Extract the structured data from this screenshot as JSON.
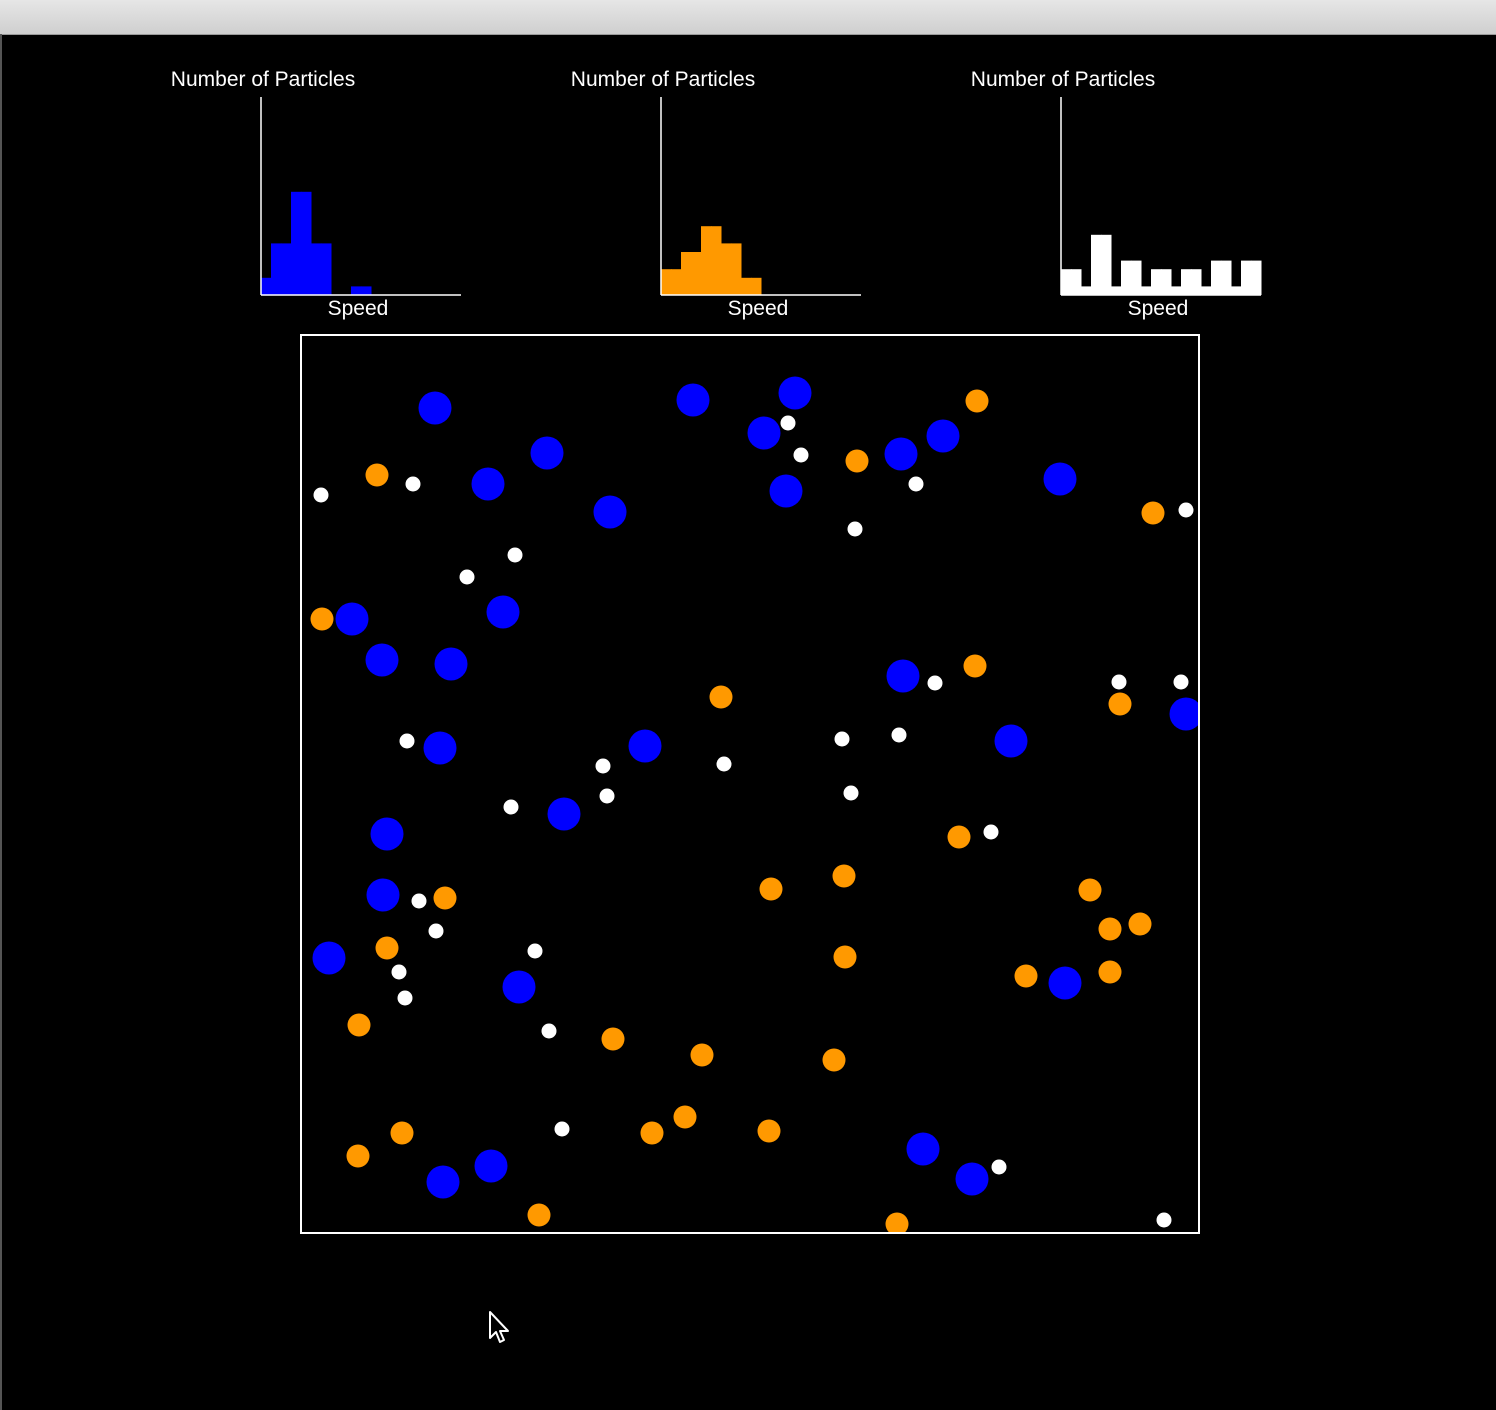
{
  "histograms": [
    {
      "ylabel": "Number of Particles",
      "xlabel": "Speed",
      "color": "#0000ff"
    },
    {
      "ylabel": "Number of Particles",
      "xlabel": "Speed",
      "color": "#ff9900"
    },
    {
      "ylabel": "Number of Particles",
      "xlabel": "Speed",
      "color": "#ffffff"
    }
  ],
  "chart_data": [
    {
      "type": "bar",
      "color": "#0000ff",
      "ylabel": "Number of Particles",
      "xlabel": "Speed",
      "values": [
        2,
        6,
        6,
        12,
        12,
        6,
        6,
        0,
        0,
        1,
        1,
        0,
        0,
        0,
        0,
        0,
        0,
        0,
        0,
        0
      ]
    },
    {
      "type": "bar",
      "color": "#ff9900",
      "ylabel": "Number of Particles",
      "xlabel": "Speed",
      "values": [
        3,
        3,
        5,
        5,
        8,
        8,
        6,
        6,
        2,
        2,
        0,
        0,
        0,
        0,
        0,
        0,
        0,
        0,
        0,
        0
      ]
    },
    {
      "type": "bar",
      "color": "#ffffff",
      "ylabel": "Number of Particles",
      "xlabel": "Speed",
      "values": [
        3,
        3,
        1,
        7,
        7,
        1,
        4,
        4,
        1,
        3,
        3,
        1,
        3,
        3,
        1,
        4,
        4,
        1,
        4,
        4
      ]
    }
  ],
  "simulation": {
    "colors": {
      "large": "#0000ff",
      "medium": "#ff9900",
      "small": "#ffffff",
      "border": "#ffffff",
      "background": "#000000"
    },
    "particles": {
      "large": [
        [
          133,
          72
        ],
        [
          391,
          64
        ],
        [
          493,
          57
        ],
        [
          462,
          97
        ],
        [
          245,
          117
        ],
        [
          186,
          148
        ],
        [
          308,
          176
        ],
        [
          484,
          155
        ],
        [
          599,
          118
        ],
        [
          641,
          100
        ],
        [
          758,
          143
        ],
        [
          50,
          283
        ],
        [
          201,
          276
        ],
        [
          80,
          324
        ],
        [
          149,
          328
        ],
        [
          601,
          340
        ],
        [
          343,
          410
        ],
        [
          138,
          412
        ],
        [
          709,
          405
        ],
        [
          884,
          378
        ],
        [
          262,
          478
        ],
        [
          85,
          498
        ],
        [
          81,
          559
        ],
        [
          27,
          622
        ],
        [
          217,
          651
        ],
        [
          763,
          647
        ],
        [
          621,
          813
        ],
        [
          189,
          830
        ],
        [
          141,
          846
        ],
        [
          670,
          843
        ]
      ],
      "medium": [
        [
          675,
          65
        ],
        [
          75,
          139
        ],
        [
          555,
          125
        ],
        [
          851,
          177
        ],
        [
          20,
          283
        ],
        [
          673,
          330
        ],
        [
          419,
          361
        ],
        [
          818,
          368
        ],
        [
          657,
          501
        ],
        [
          469,
          553
        ],
        [
          542,
          540
        ],
        [
          788,
          554
        ],
        [
          143,
          562
        ],
        [
          808,
          593
        ],
        [
          838,
          588
        ],
        [
          85,
          612
        ],
        [
          543,
          621
        ],
        [
          724,
          640
        ],
        [
          808,
          636
        ],
        [
          57,
          689
        ],
        [
          311,
          703
        ],
        [
          400,
          719
        ],
        [
          532,
          724
        ],
        [
          100,
          797
        ],
        [
          56,
          820
        ],
        [
          350,
          797
        ],
        [
          383,
          781
        ],
        [
          467,
          795
        ],
        [
          237,
          879
        ],
        [
          595,
          888
        ]
      ],
      "small": [
        [
          486,
          87
        ],
        [
          499,
          119
        ],
        [
          19,
          159
        ],
        [
          111,
          148
        ],
        [
          614,
          148
        ],
        [
          553,
          193
        ],
        [
          884,
          174
        ],
        [
          213,
          219
        ],
        [
          165,
          241
        ],
        [
          633,
          347
        ],
        [
          817,
          346
        ],
        [
          879,
          346
        ],
        [
          105,
          405
        ],
        [
          301,
          430
        ],
        [
          422,
          428
        ],
        [
          540,
          403
        ],
        [
          597,
          399
        ],
        [
          305,
          460
        ],
        [
          549,
          457
        ],
        [
          209,
          471
        ],
        [
          689,
          496
        ],
        [
          117,
          565
        ],
        [
          134,
          595
        ],
        [
          233,
          615
        ],
        [
          97,
          636
        ],
        [
          103,
          662
        ],
        [
          247,
          695
        ],
        [
          260,
          793
        ],
        [
          697,
          831
        ],
        [
          862,
          884
        ]
      ]
    }
  },
  "cursor": {
    "icon": "arrow-pointer-icon"
  }
}
